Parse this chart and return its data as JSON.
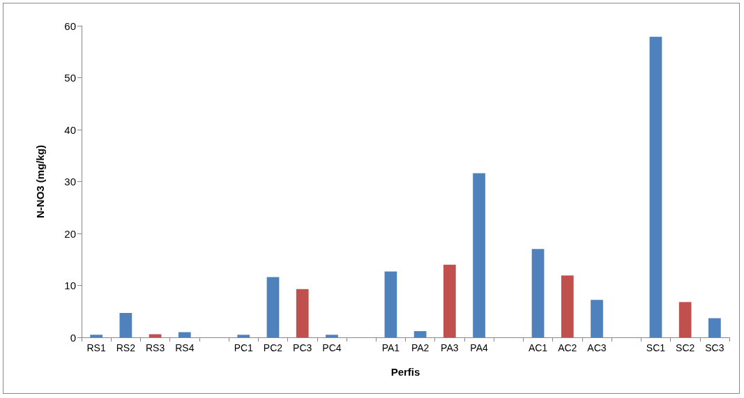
{
  "chart_data": {
    "type": "bar",
    "xlabel": "Perfis",
    "ylabel": "N-NO3 (mg/kg)",
    "categories": [
      "RS1",
      "RS2",
      "RS3",
      "RS4",
      null,
      "PC1",
      "PC2",
      "PC3",
      "PC4",
      null,
      "PA1",
      "PA2",
      "PA3",
      "PA4",
      null,
      "AC1",
      "AC2",
      "AC3",
      null,
      "SC1",
      "SC2",
      "SC3"
    ],
    "values": [
      0.5,
      4.7,
      0.6,
      1.0,
      null,
      0.5,
      11.6,
      9.3,
      0.5,
      null,
      12.7,
      1.2,
      14.0,
      31.6,
      null,
      17.0,
      11.9,
      7.2,
      null,
      57.9,
      6.8,
      3.7
    ],
    "colors": [
      "#4f81bd",
      "#4f81bd",
      "#c0504d",
      "#4f81bd",
      "#4f81bd",
      "#4f81bd",
      "#4f81bd",
      "#c0504d",
      "#4f81bd",
      "#4f81bd",
      "#4f81bd",
      "#4f81bd",
      "#c0504d",
      "#4f81bd",
      "#4f81bd",
      "#4f81bd",
      "#c0504d",
      "#4f81bd",
      "#4f81bd",
      "#4f81bd",
      "#c0504d",
      "#4f81bd"
    ],
    "ylim": [
      0,
      60
    ],
    "yticks": [
      0,
      10,
      20,
      30,
      40,
      50,
      60
    ],
    "grid": false
  }
}
